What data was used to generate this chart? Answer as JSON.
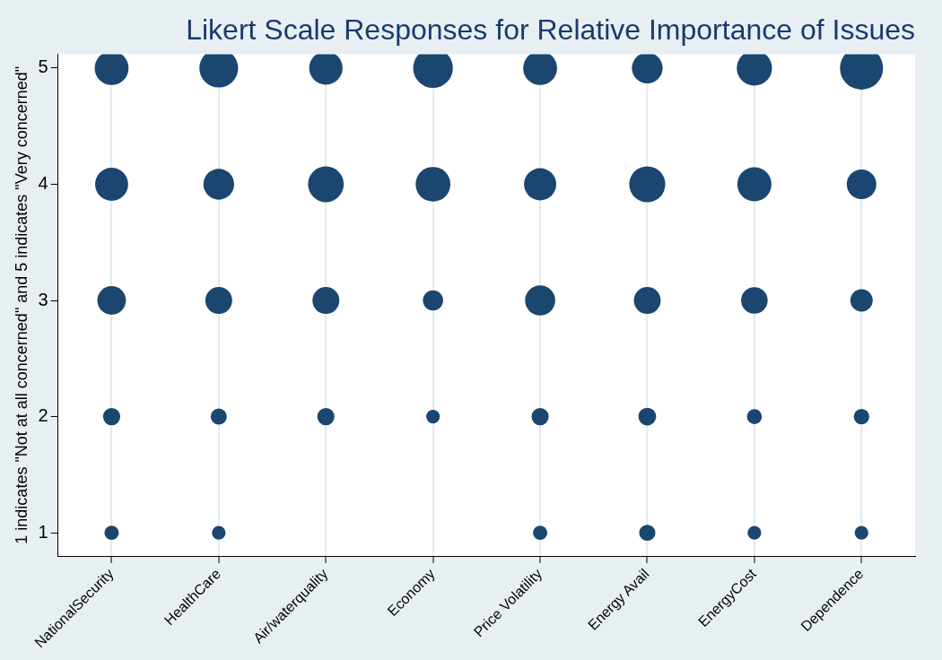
{
  "chart_data": {
    "type": "bubble",
    "title": "Likert Scale Responses for Relative Importance of Issues",
    "ylabel": "1 indicates \"Not at all concerned\" and 5 indicates \"Very concerned\"",
    "categories": [
      "NationalSecurity",
      "HealthCare",
      "Air/waterquality",
      "Economy",
      "Price Volatility",
      "Energy Avail",
      "EnergyCost",
      "Dependence"
    ],
    "ylim": [
      0.8,
      5.12
    ],
    "yticks": [
      1,
      2,
      3,
      4,
      5
    ],
    "grid": "x",
    "legend": false,
    "series": [
      {
        "color": "#1a4670",
        "x": [
          "NationalSecurity",
          "HealthCare",
          "Air/waterquality",
          "Economy",
          "Price Volatility",
          "Energy Avail",
          "EnergyCost",
          "Dependence",
          "NationalSecurity",
          "HealthCare",
          "Air/waterquality",
          "Economy",
          "Price Volatility",
          "Energy Avail",
          "EnergyCost",
          "Dependence",
          "NationalSecurity",
          "HealthCare",
          "Air/waterquality",
          "Economy",
          "Price Volatility",
          "Energy Avail",
          "EnergyCost",
          "Dependence",
          "NationalSecurity",
          "HealthCare",
          "Air/waterquality",
          "Economy",
          "Price Volatility",
          "Energy Avail",
          "EnergyCost",
          "Dependence",
          "NationalSecurity",
          "HealthCare",
          "Price Volatility",
          "Energy Avail",
          "EnergyCost",
          "Dependence"
        ],
        "values": [
          5,
          5,
          5,
          5,
          5,
          5,
          5,
          5,
          4,
          4,
          4,
          4,
          4,
          4,
          4,
          4,
          3,
          3,
          3,
          3,
          3,
          3,
          3,
          3,
          2,
          2,
          2,
          2,
          2,
          2,
          2,
          2,
          1,
          1,
          1,
          1,
          1,
          1
        ],
        "sizes": [
          0.62,
          0.81,
          0.6,
          0.85,
          0.62,
          0.51,
          0.67,
          1,
          0.59,
          0.51,
          0.69,
          0.65,
          0.56,
          0.7,
          0.63,
          0.47,
          0.44,
          0.39,
          0.39,
          0.22,
          0.49,
          0.39,
          0.38,
          0.27,
          0.16,
          0.14,
          0.16,
          0.1,
          0.16,
          0.17,
          0.12,
          0.13,
          0.11,
          0.1,
          0.11,
          0.14,
          0.1,
          0.1
        ]
      }
    ]
  }
}
